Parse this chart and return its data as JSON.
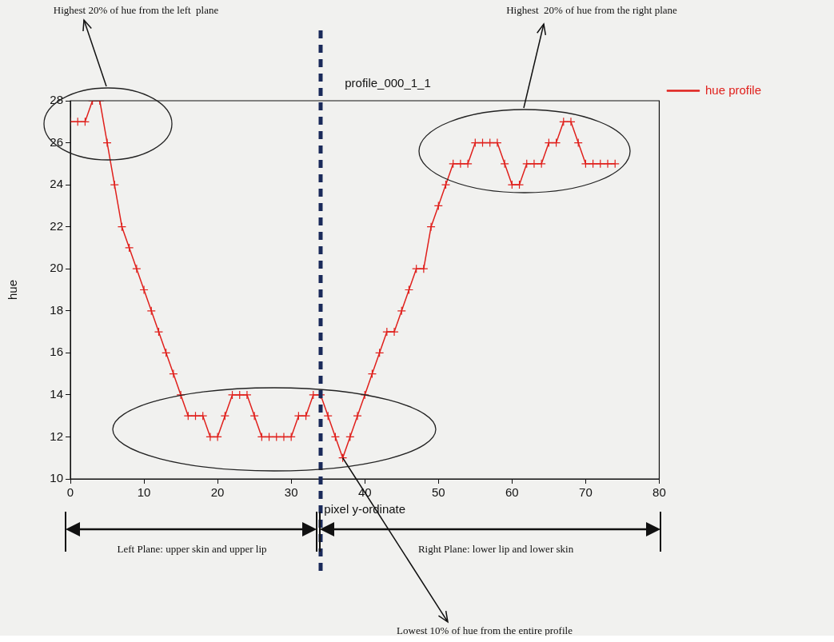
{
  "chart_data": {
    "type": "line",
    "title": "profile_000_1_1",
    "xlabel": "pixel y-ordinate",
    "ylabel": "hue",
    "x": [
      0,
      1,
      2,
      3,
      4,
      5,
      6,
      7,
      8,
      9,
      10,
      11,
      12,
      13,
      14,
      15,
      16,
      17,
      18,
      19,
      20,
      21,
      22,
      23,
      24,
      25,
      26,
      27,
      28,
      29,
      30,
      31,
      32,
      33,
      34,
      35,
      36,
      37,
      38,
      39,
      40,
      41,
      42,
      43,
      44,
      45,
      46,
      47,
      48,
      49,
      50,
      51,
      52,
      53,
      54,
      55,
      56,
      57,
      58,
      59,
      60,
      61,
      62,
      63,
      64,
      65,
      66,
      67,
      68,
      69,
      70,
      71,
      72,
      73,
      74
    ],
    "series": [
      {
        "name": "hue profile",
        "color": "#e0201c",
        "values": [
          27,
          27,
          27,
          28,
          28,
          26,
          24,
          22,
          21,
          20,
          19,
          18,
          17,
          16,
          15,
          14,
          13,
          13,
          13,
          12,
          12,
          13,
          14,
          14,
          14,
          13,
          12,
          12,
          12,
          12,
          12,
          13,
          13,
          14,
          14,
          13,
          12,
          11,
          12,
          13,
          14,
          15,
          16,
          17,
          17,
          18,
          19,
          20,
          20,
          22,
          23,
          24,
          25,
          25,
          25,
          26,
          26,
          26,
          26,
          25,
          24,
          24,
          25,
          25,
          25,
          26,
          26,
          27,
          27,
          26,
          25,
          25,
          25,
          25,
          25
        ]
      }
    ],
    "xlim": [
      0,
      80
    ],
    "xticks": [
      0,
      10,
      20,
      30,
      40,
      50,
      60,
      70,
      80
    ],
    "ylim": [
      10,
      28
    ],
    "yticks": [
      10,
      12,
      14,
      16,
      18,
      20,
      22,
      24,
      26,
      28
    ],
    "grid": false,
    "legend": "right",
    "marker": "cross",
    "line_style": "solid",
    "ref_lines": [
      {
        "axis": "x",
        "value": 34,
        "color": "#1a2a5a",
        "line_style": "dashed"
      }
    ],
    "annotations": [
      "Highest 20% of hue from the left  plane",
      "Highest  20% of hue from the right plane",
      {
        "text": "Lowest 10% of hue from the entire profile",
        "x": 37,
        "y": 11
      },
      "Left Plane: upper skin and upper lip",
      "Right Plane: lower lip and lower skin"
    ]
  }
}
